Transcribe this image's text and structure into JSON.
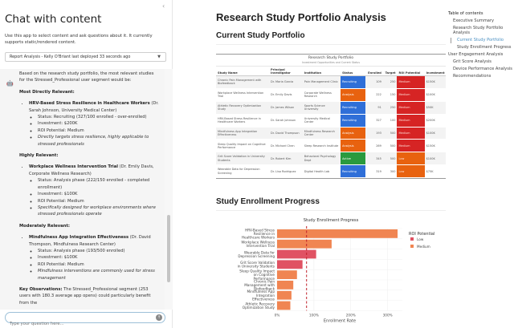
{
  "chat": {
    "title": "Chat with content",
    "description": "Use this app to select content and ask questions about it. It currently supports static/rendered content.",
    "selected_content": "Report Analysis - Kelly O'Briant last deployed 33 seconds ago",
    "collapse_glyph": "‹",
    "input_placeholder": "Type your question here...",
    "message": {
      "intro": "Based on the research study portfolio, the most relevant studies for the Stressed_Professional user segment would be:",
      "sections": [
        {
          "heading": "Most Directly Relevant:",
          "study": "HRV-Based Stress Resilience in Healthcare Workers",
          "pi": " (Dr. Sarah Johnson, University Medical Center)",
          "status": "Status: Recruiting (327/100 enrolled - over-enrolled)",
          "investment": "Investment: $200K",
          "roi": "ROI Potential: Medium",
          "note": "Directly targets stress resilience, highly applicable to stressed professionals"
        },
        {
          "heading": "Highly Relevant:",
          "study": "Workplace Wellness Intervention Trial",
          "pi": " (Dr. Emily Davis, Corporate Wellness Research)",
          "status": "Status: Analysis phase (222/150 enrolled - completed enrollment)",
          "investment": "Investment: $100K",
          "roi": "ROI Potential: Medium",
          "note": "Specifically designed for workplace environments where stressed professionals operate"
        },
        {
          "heading": "Moderately Relevant:",
          "study": "Mindfulness App Integration Effectiveness",
          "pi": " (Dr. David Thompson, Mindfulness Research Center)",
          "status": "Status: Analysis phase (193/500 enrolled)",
          "investment": "Investment: $100K",
          "roi": "ROI Potential: Medium",
          "note": "Mindfulness interventions are commonly used for stress management"
        }
      ],
      "key_obs_label": "Key Observations:",
      "key_obs_text": " The Stressed_Professional segment (253 users with 180.3 average app opens) could particularly benefit from the"
    }
  },
  "report": {
    "title": "Research Study Portfolio Analysis",
    "section1": "Current Study Portfolio",
    "section2": "Study Enrollment Progress",
    "table": {
      "title": "Research Study Portfolio",
      "subtitle": "Investment Opportunities and Current Status",
      "headers": [
        "Study Name",
        "Principal Investigator",
        "Institution",
        "Status",
        "Enrolled",
        "Target",
        "ROI Potential",
        "Investment"
      ],
      "rows": [
        [
          "Chronic Pain Management with Biofeedback",
          "Dr. Maria Garcia",
          "Pain Management Clinic",
          "Recruiting",
          "109",
          "250",
          "Medium",
          "$150K"
        ],
        [
          "Workplace Wellness Intervention Trial",
          "Dr. Emily Davis",
          "Corporate Wellness Research",
          "Analysis",
          "222",
          "150",
          "Medium",
          "$100K"
        ],
        [
          "Athletic Recovery Optimization Study",
          "Dr. James Wilson",
          "Sports Science University",
          "Recruiting",
          "91",
          "250",
          "Medium",
          "$50K"
        ],
        [
          "HRV-Based Stress Resilience in Healthcare Workers",
          "Dr. Sarah Johnson",
          "University Medical Center",
          "Recruiting",
          "327",
          "100",
          "Medium",
          "$200K"
        ],
        [
          "Mindfulness App Integration Effectiveness",
          "Dr. David Thompson",
          "Mindfulness Research Center",
          "Analysis",
          "193",
          "500",
          "Medium",
          "$100K"
        ],
        [
          "Sleep Quality Impact on Cognitive Performance",
          "Dr. Michael Chen",
          "Sleep Research Institute",
          "Analysis",
          "269",
          "500",
          "Medium",
          "$150K"
        ],
        [
          "Grit Score Validation in University Students",
          "Dr. Robert Kim",
          "Behavioral Psychology Dept",
          "Active",
          "345",
          "500",
          "Low",
          "$100K"
        ],
        [
          "Wearable Data for Depression Screening",
          "Dr. Lisa Rodriguez",
          "Digital Health Lab",
          "Recruiting",
          "319",
          "300",
          "Low",
          "$75K"
        ]
      ],
      "status_colors": {
        "Recruiting": "#2f6fd8",
        "Analysis": "#e8620f",
        "Active": "#2a9a3e"
      },
      "roi_colors": {
        "Medium": "#d62424",
        "Low": "#e8620f"
      }
    }
  },
  "toc": {
    "heading": "Table of contents",
    "items": [
      {
        "label": "Executive Summary",
        "level": 1,
        "active": false
      },
      {
        "label": "Research Study Portfolio Analysis",
        "level": 1,
        "active": false
      },
      {
        "label": "Current Study Portfolio",
        "level": 2,
        "active": true
      },
      {
        "label": "Study Enrollment Progress",
        "level": 2,
        "active": false
      },
      {
        "label": "User Engagement Analysis",
        "level": 0,
        "active": false
      },
      {
        "label": "Grit Score Analysis",
        "level": 1,
        "active": false
      },
      {
        "label": "Device Performance Analysis",
        "level": 1,
        "active": false
      },
      {
        "label": "Recommendations",
        "level": 1,
        "active": false
      }
    ]
  },
  "chart_data": {
    "type": "bar",
    "orientation": "horizontal",
    "title": "Study Enrollment Progress",
    "xlabel": "Enrollment Rate",
    "ylabel": "",
    "categories": [
      "HRV-Based Stress Resilience in Healthcare Workers",
      "Workplace Wellness Intervention Trial",
      "Wearable Data for Depression Screening",
      "Grit Score Validation in University Students",
      "Sleep Quality Impact on Cognitive Performance",
      "Chronic Pain Management with Biofeedback",
      "Mindfulness App Integration Effectiveness",
      "Athletic Recovery Optimization Study"
    ],
    "values": [
      327,
      148,
      106,
      69,
      54,
      44,
      39,
      36
    ],
    "roi_group": [
      "Medium",
      "Medium",
      "Low",
      "Low",
      "Medium",
      "Medium",
      "Medium",
      "Medium"
    ],
    "xlim": [
      0,
      340
    ],
    "xticks": [
      0,
      100,
      200,
      300
    ],
    "xtick_labels": [
      "0%",
      "100%",
      "200%",
      "300%"
    ],
    "reference_line": 80,
    "legend": {
      "title": "ROI Potential",
      "placement": "right",
      "entries": [
        {
          "name": "Low",
          "color": "#e05263"
        },
        {
          "name": "Medium",
          "color": "#f08552"
        }
      ]
    },
    "grid": true
  }
}
